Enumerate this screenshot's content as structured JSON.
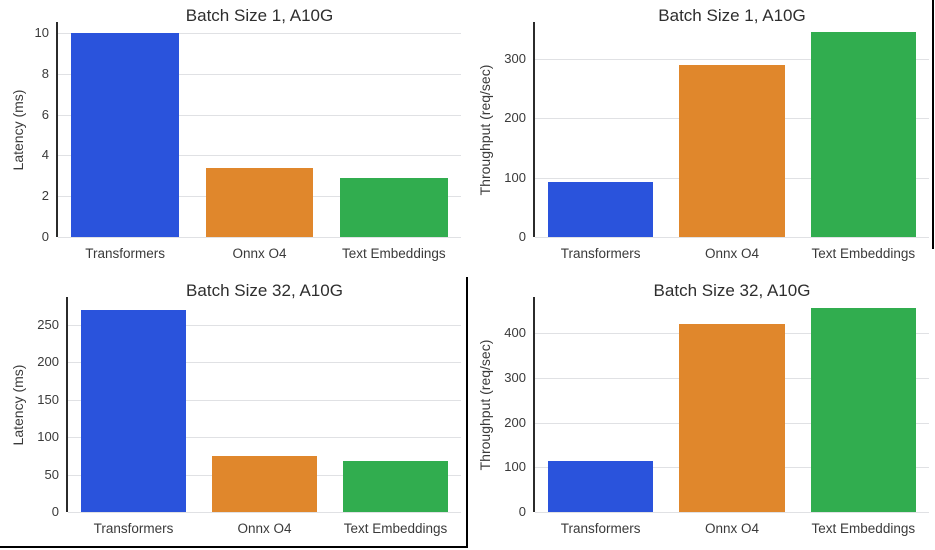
{
  "colors": {
    "bar_palette": [
      "#2a53dc",
      "#e0872c",
      "#31ad4f"
    ],
    "grid": "#e0e1e4",
    "spine": "#2b2b2b",
    "tick_text": "#3a3a3a",
    "title_text": "#2e2e2e",
    "divider": "#000000"
  },
  "chart_data": [
    {
      "type": "bar",
      "title": "Batch Size 1, A10G",
      "xlabel": "",
      "ylabel": "Latency (ms)",
      "categories": [
        "Transformers",
        "Onnx O4",
        "Text Embeddings"
      ],
      "values": [
        10.0,
        3.4,
        2.9
      ],
      "yticks": [
        0,
        2,
        4,
        6,
        8,
        10
      ],
      "ylim": [
        0,
        10.55
      ],
      "grid": true,
      "legend": false
    },
    {
      "type": "bar",
      "title": "Batch Size 1, A10G",
      "xlabel": "",
      "ylabel": "Throughput (req/sec)",
      "categories": [
        "Transformers",
        "Onnx O4",
        "Text Embeddings"
      ],
      "values": [
        92,
        290,
        345
      ],
      "yticks": [
        0,
        100,
        200,
        300
      ],
      "ylim": [
        0,
        362
      ],
      "grid": true,
      "legend": false
    },
    {
      "type": "bar",
      "title": "Batch Size 32, A10G",
      "xlabel": "",
      "ylabel": "Latency (ms)",
      "categories": [
        "Transformers",
        "Onnx O4",
        "Text Embeddings"
      ],
      "values": [
        270,
        75,
        68
      ],
      "yticks": [
        0,
        50,
        100,
        150,
        200,
        250
      ],
      "ylim": [
        0,
        287
      ],
      "grid": true,
      "legend": false
    },
    {
      "type": "bar",
      "title": "Batch Size 32, A10G",
      "xlabel": "",
      "ylabel": "Throughput (req/sec)",
      "categories": [
        "Transformers",
        "Onnx O4",
        "Text Embeddings"
      ],
      "values": [
        115,
        420,
        457
      ],
      "yticks": [
        0,
        100,
        200,
        300,
        400
      ],
      "ylim": [
        0,
        481
      ],
      "grid": true,
      "legend": false
    }
  ]
}
